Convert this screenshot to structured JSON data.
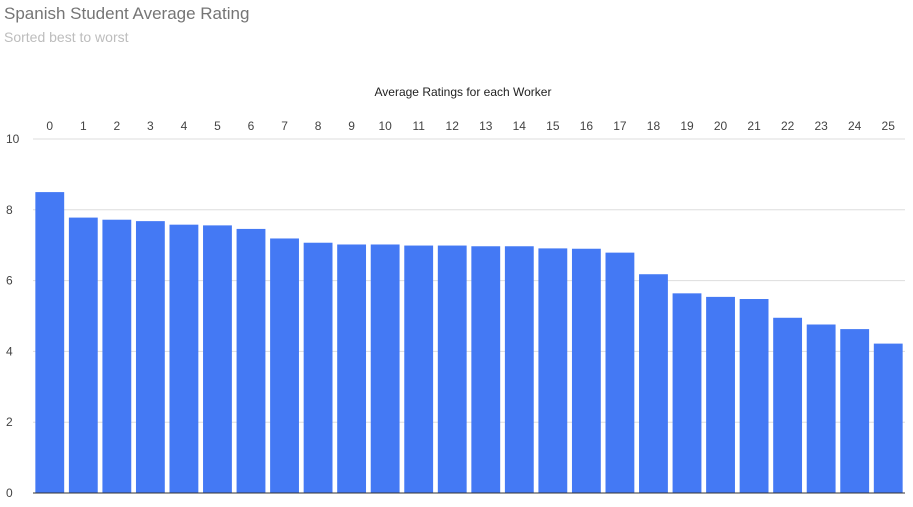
{
  "chart_data": {
    "type": "bar",
    "title": "Spanish Student Average Rating",
    "subtitle": "Sorted best to worst",
    "xlabel": "Average Ratings for each Worker",
    "ylabel": "",
    "categories": [
      "0",
      "1",
      "2",
      "3",
      "4",
      "5",
      "6",
      "7",
      "8",
      "9",
      "10",
      "11",
      "12",
      "13",
      "14",
      "15",
      "16",
      "17",
      "18",
      "19",
      "20",
      "21",
      "22",
      "23",
      "24",
      "25"
    ],
    "values": [
      8.5,
      7.78,
      7.72,
      7.68,
      7.58,
      7.56,
      7.46,
      7.19,
      7.07,
      7.02,
      7.02,
      6.99,
      6.99,
      6.97,
      6.97,
      6.91,
      6.9,
      6.79,
      6.18,
      5.64,
      5.54,
      5.48,
      4.95,
      4.76,
      4.63,
      4.22
    ],
    "ylim": [
      0,
      10
    ],
    "yticks": [
      "0",
      "2",
      "4",
      "6",
      "8",
      "10"
    ],
    "x_axis_position": "top",
    "grid": true,
    "bar_color": "#4479f4",
    "gridline_color": "#dddddd",
    "baseline_color": "#333333"
  }
}
